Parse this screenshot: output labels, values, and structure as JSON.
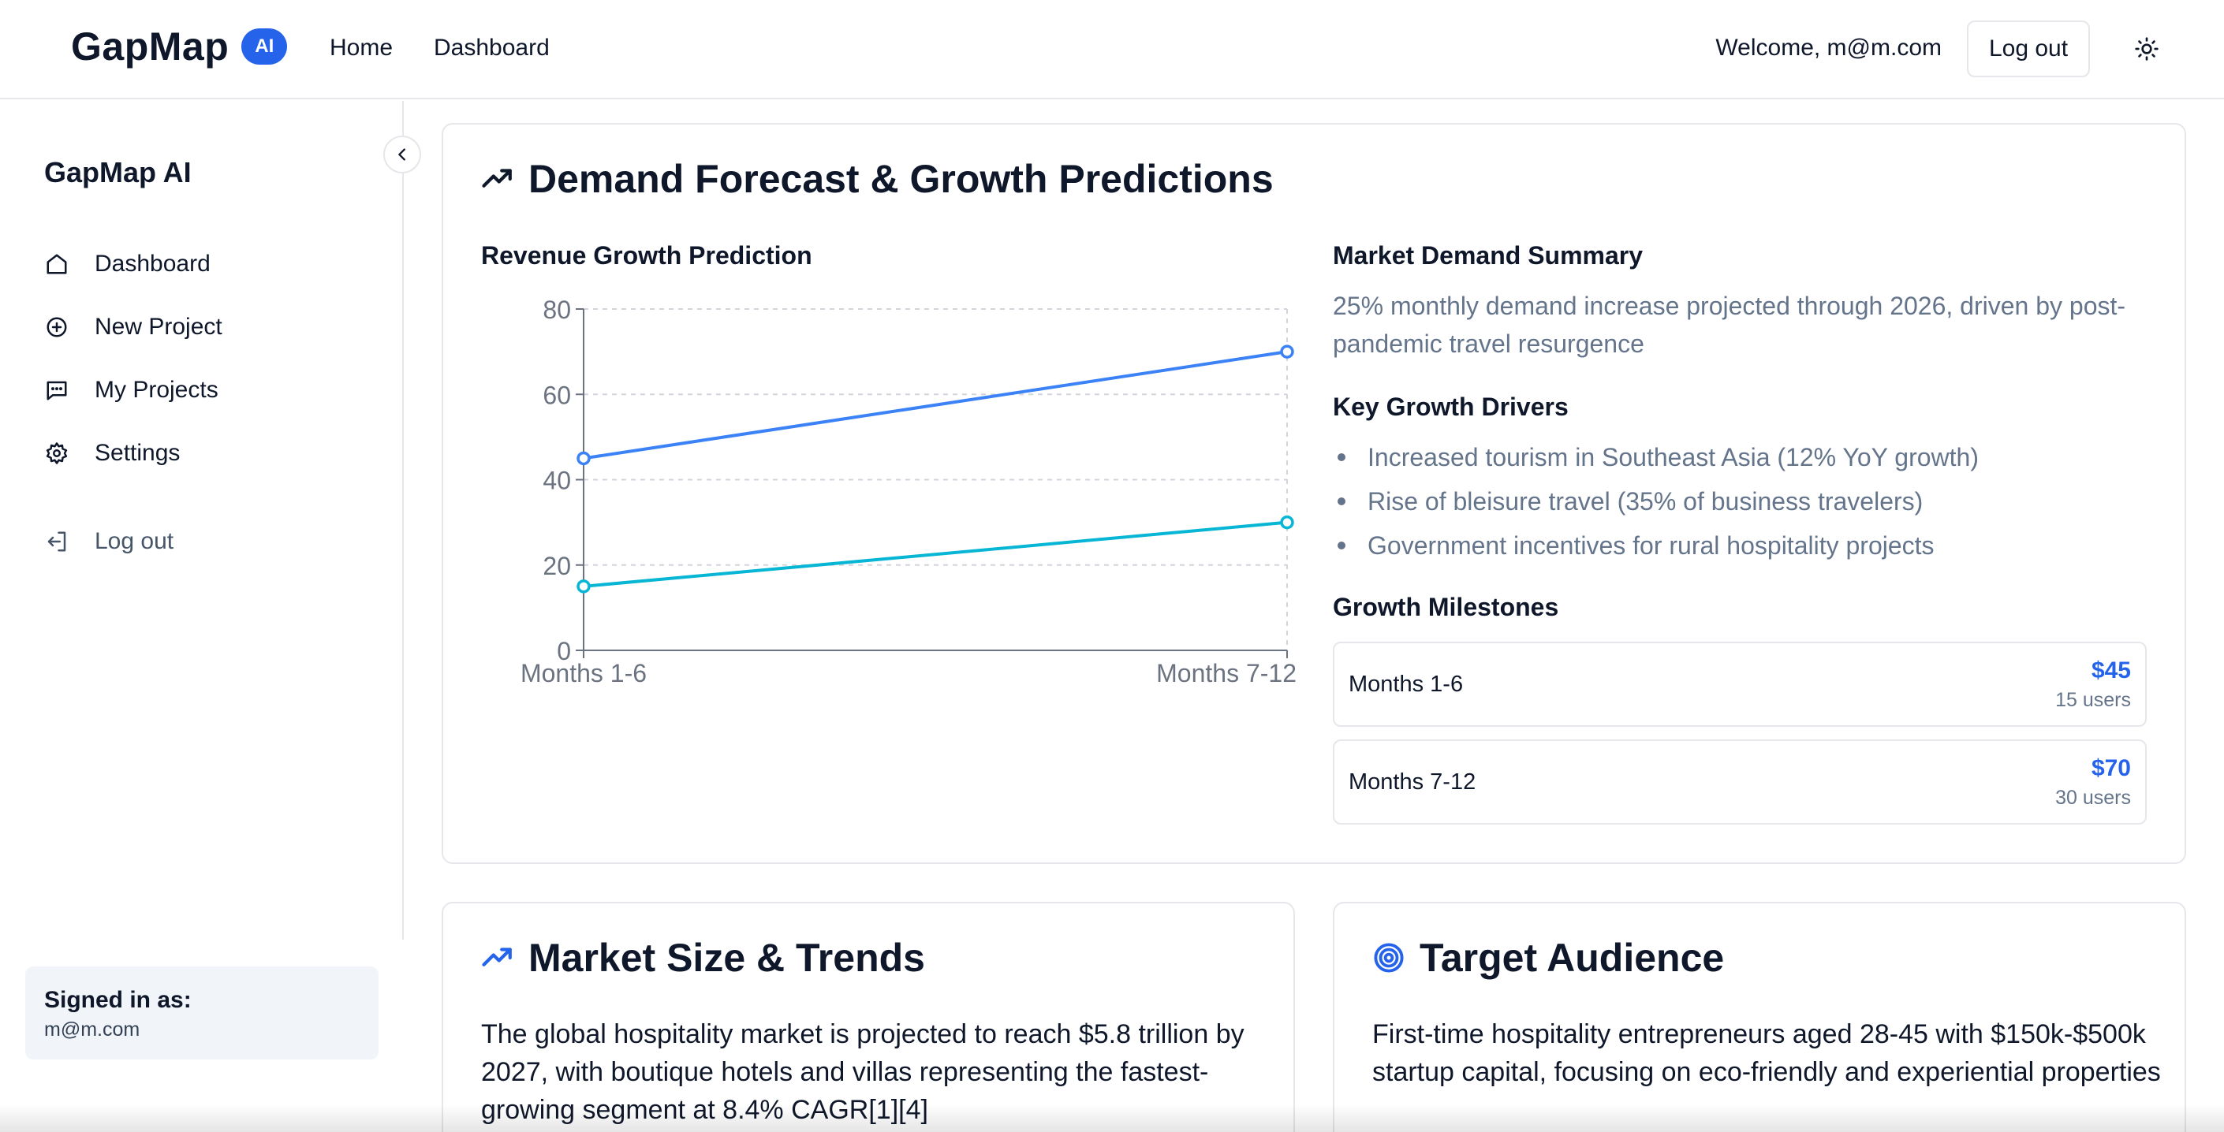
{
  "header": {
    "brand_name": "GapMap",
    "brand_badge": "AI",
    "nav": [
      {
        "label": "Home"
      },
      {
        "label": "Dashboard"
      }
    ],
    "welcome": "Welcome, m@m.com",
    "logout_label": "Log out",
    "theme_icon": "sun-icon"
  },
  "sidebar": {
    "title": "GapMap AI",
    "items": [
      {
        "label": "Dashboard",
        "icon": "home-icon"
      },
      {
        "label": "New Project",
        "icon": "plus-circle-icon"
      },
      {
        "label": "My Projects",
        "icon": "message-square-icon"
      },
      {
        "label": "Settings",
        "icon": "gear-icon"
      }
    ],
    "logout_label": "Log out",
    "signed_in_label": "Signed in as:",
    "signed_in_email": "m@m.com"
  },
  "forecast": {
    "title": "Demand Forecast & Growth Predictions",
    "chart_title": "Revenue Growth Prediction",
    "summary_title": "Market Demand Summary",
    "summary_text": "25% monthly demand increase projected through 2026, driven by post-pandemic travel resurgence",
    "drivers_title": "Key Growth Drivers",
    "drivers": [
      "Increased tourism in Southeast Asia (12% YoY growth)",
      "Rise of bleisure travel (35% of business travelers)",
      "Government incentives for rural hospitality projects"
    ],
    "milestones_title": "Growth Milestones",
    "milestones": [
      {
        "label": "Months 1-6",
        "value": "$45",
        "users": "15 users"
      },
      {
        "label": "Months 7-12",
        "value": "$70",
        "users": "30 users"
      }
    ]
  },
  "market": {
    "title": "Market Size & Trends",
    "text": "The global hospitality market is projected to reach $5.8 trillion by 2027, with boutique hotels and villas representing the fastest-growing segment at 8.4% CAGR[1][4]"
  },
  "audience": {
    "title": "Target Audience",
    "text": "First-time hospitality entrepreneurs aged 28-45 with $150k-$500k startup capital, focusing on eco-friendly and experiential properties"
  },
  "chart_data": {
    "type": "line",
    "categories": [
      "Months 1-6",
      "Months 7-12"
    ],
    "series": [
      {
        "values": [
          45,
          70
        ],
        "color": "#3b82f6"
      },
      {
        "values": [
          15,
          30
        ],
        "color": "#06b6d4"
      }
    ],
    "ylim": [
      0,
      80
    ],
    "yticks": [
      0,
      20,
      40,
      60,
      80
    ],
    "grid": true
  },
  "colors": {
    "accent": "#2563eb",
    "muted_text": "#64748b",
    "border": "#e5e7eb"
  }
}
